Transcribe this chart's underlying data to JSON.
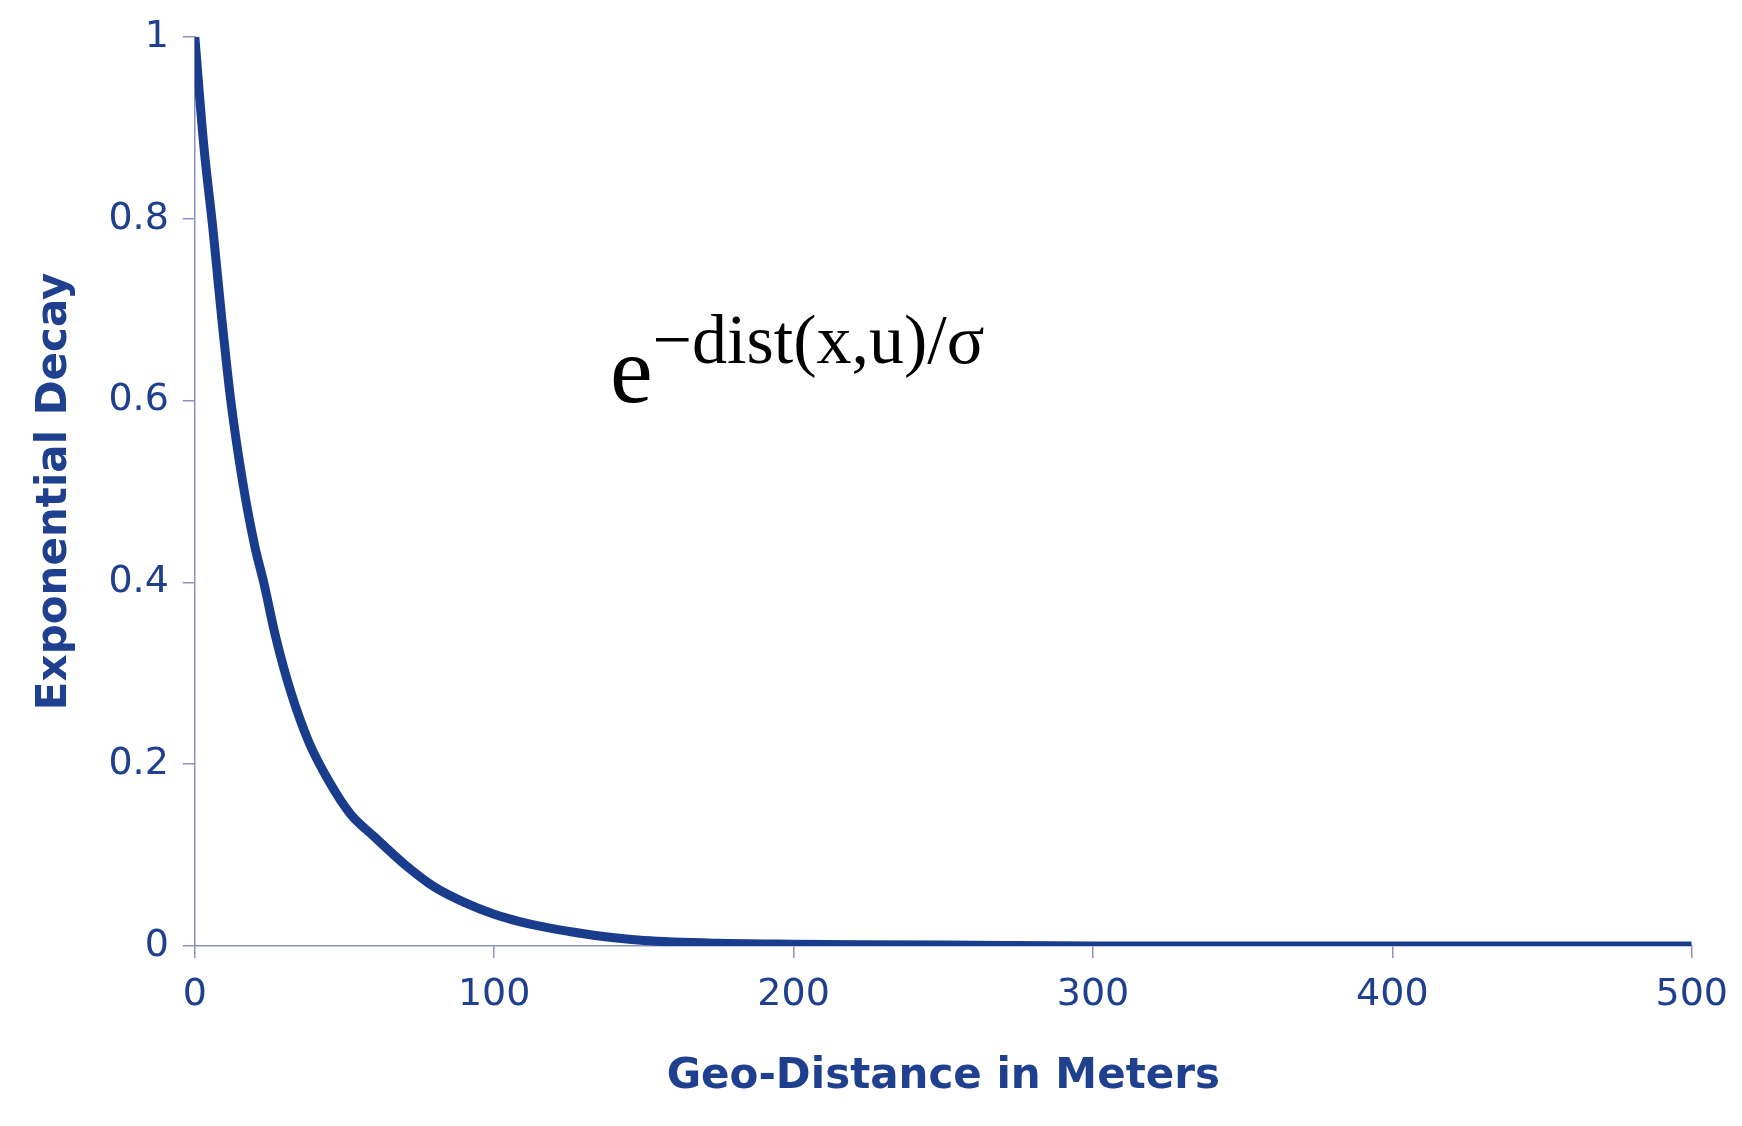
{
  "chart_data": {
    "type": "line",
    "xlabel": "Geo-Distance in Meters",
    "ylabel": "Exponential Decay",
    "x": [
      0,
      3,
      6,
      9,
      12,
      16,
      20,
      23,
      27,
      32,
      38,
      45,
      52,
      60,
      70,
      80,
      90,
      100,
      112,
      125,
      140,
      150,
      175,
      200,
      250,
      300,
      400,
      500
    ],
    "series": [
      {
        "color": "#1a3c8c",
        "values": [
          1,
          0.88,
          0.79,
          0.69,
          0.6,
          0.51,
          0.44,
          0.4,
          0.34,
          0.28,
          0.225,
          0.18,
          0.145,
          0.12,
          0.09,
          0.065,
          0.048,
          0.035,
          0.024,
          0.016,
          0.009,
          0.006,
          0.003,
          0.002,
          0.001,
          0,
          0,
          0
        ]
      }
    ],
    "xlim": [
      0,
      500
    ],
    "xticks": [
      0,
      100,
      200,
      300,
      400,
      500
    ],
    "ylim": [
      0,
      1
    ],
    "yticks": [
      0,
      0.2,
      0.4,
      0.6,
      0.8,
      1
    ],
    "grid": false,
    "legend": false,
    "marker": "none",
    "line_style": "solid",
    "annotations": [
      "e$^{−dist(x,u)/σ}$"
    ]
  }
}
